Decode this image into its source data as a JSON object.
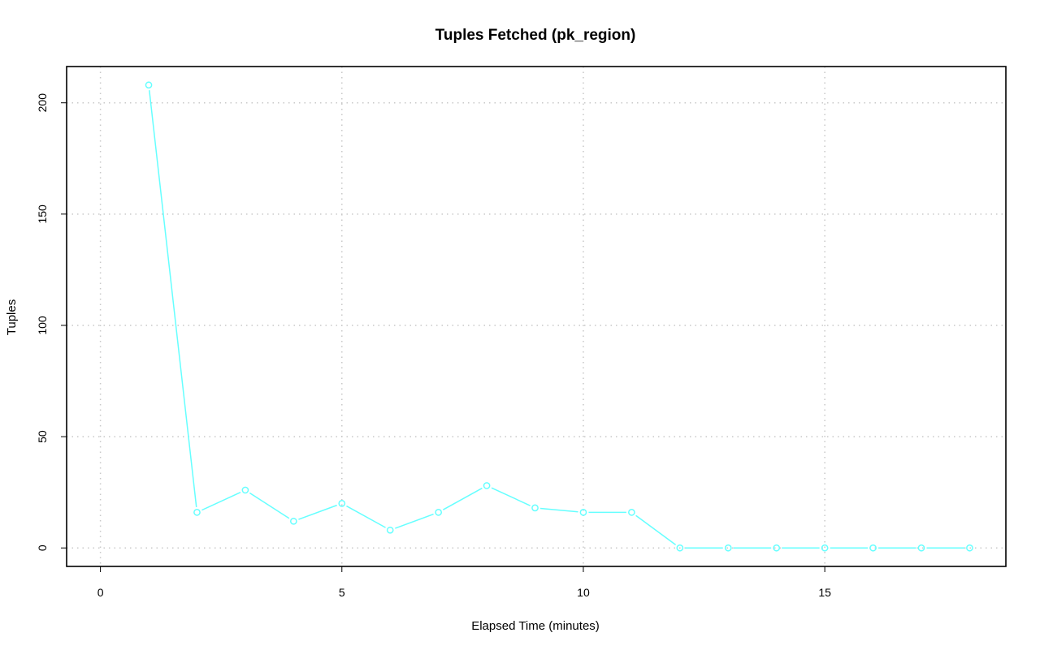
{
  "chart_data": {
    "type": "line",
    "title": "Tuples Fetched (pk_region)",
    "xlabel": "Elapsed Time (minutes)",
    "ylabel": "Tuples",
    "xlim": [
      -0.7,
      18.75
    ],
    "ylim": [
      -8.3,
      216.3
    ],
    "x_ticks": [
      0,
      5,
      10,
      15
    ],
    "y_ticks": [
      0,
      50,
      100,
      150,
      200
    ],
    "grid": true,
    "color": "#66ffff",
    "series": [
      {
        "x": [
          1,
          2,
          3,
          4,
          5,
          6,
          7,
          8,
          9,
          10,
          11,
          12,
          13,
          14,
          15,
          16,
          17,
          18
        ],
        "values": [
          208,
          16,
          26,
          12,
          20,
          8,
          16,
          28,
          18,
          16,
          16,
          0,
          0,
          0,
          0,
          0,
          0,
          0
        ]
      }
    ]
  }
}
